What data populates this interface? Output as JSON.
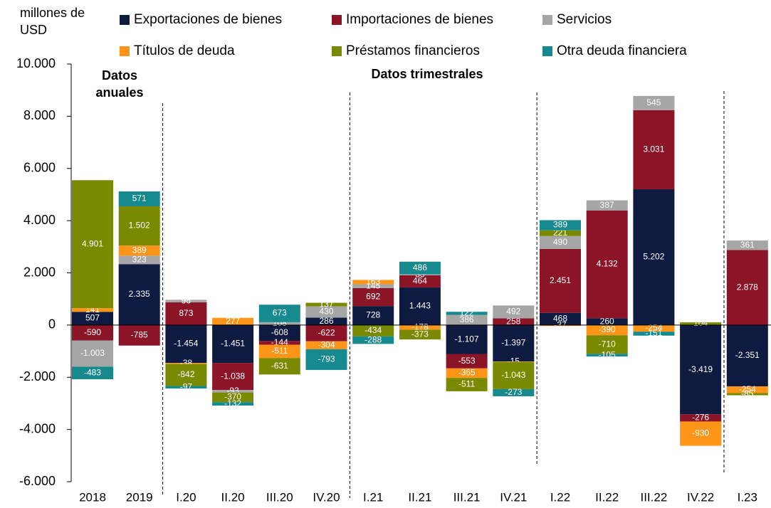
{
  "chart_data": {
    "type": "bar",
    "stacked": true,
    "y_label": "millones de USD",
    "annotations": [
      "Datos anuales",
      "Datos trimestrales"
    ],
    "categories": [
      "2018",
      "2019",
      "I.20",
      "II.20",
      "III.20",
      "IV.20",
      "I.21",
      "II.21",
      "III.21",
      "IV.21",
      "I.22",
      "II.22",
      "III.22",
      "IV.22",
      "I.23"
    ],
    "ylim": [
      -6000,
      10000
    ],
    "yticks": [
      {
        "value": -6000,
        "label": "-6.000"
      },
      {
        "value": -4000,
        "label": "-4.000"
      },
      {
        "value": -2000,
        "label": "-2.000"
      },
      0,
      {
        "value": 2000,
        "label": "2.000"
      },
      {
        "value": 4000,
        "label": "4.000"
      },
      {
        "value": 6000,
        "label": "6.000"
      },
      {
        "value": 8000,
        "label": "8.000"
      },
      {
        "value": 10000,
        "label": "10.000"
      }
    ],
    "series": [
      {
        "name": "Exportaciones de bienes",
        "color": "#0e1a40",
        "values": [
          507,
          2335,
          -1454,
          -1451,
          -608,
          286,
          728,
          1443,
          -1107,
          -1397,
          468,
          260,
          5202,
          -3419,
          -2351
        ],
        "value_labels": [
          "507",
          "2.335",
          "-1.454",
          "-1.451",
          "-608",
          "286",
          "728",
          "1.443",
          "-1.107",
          "-1.397",
          "468",
          "260",
          "5.202",
          "-3.419",
          "-2.351"
        ]
      },
      {
        "name": "Importaciones de bienes",
        "color": "#8b1427",
        "values": [
          -590,
          -785,
          873,
          -1038,
          -144,
          -622,
          692,
          464,
          -553,
          258,
          2451,
          4132,
          3031,
          -276,
          2878
        ],
        "value_labels": [
          "-590",
          "-785",
          "873",
          "-1.038",
          "-144",
          "-622",
          "692",
          "464",
          "-553",
          "258",
          "2.451",
          "4.132",
          "3.031",
          "-276",
          "2.878"
        ]
      },
      {
        "name": "Servicios",
        "color": "#a6a6a6",
        "values": [
          -1003,
          323,
          96,
          -93,
          108,
          430,
          145,
          35,
          386,
          492,
          490,
          387,
          545,
          null,
          361
        ],
        "value_labels": [
          "-1.003",
          "323",
          "96",
          "-93",
          "108",
          "430",
          "145",
          "35",
          "386",
          "492",
          "490",
          "387",
          "545",
          null,
          "361"
        ]
      },
      {
        "name": "Títulos de deuda",
        "color": "#ff9518",
        "values": [
          141,
          389,
          -38,
          277,
          -511,
          -304,
          163,
          -178,
          -365,
          -15,
          -37,
          -390,
          -254,
          -930,
          -254
        ],
        "value_labels": [
          "141",
          "389",
          "-38",
          "277",
          "-511",
          "-304",
          "163",
          "-178",
          "-365",
          "-15",
          "-37",
          "-390",
          "-254",
          "-930",
          "-254"
        ]
      },
      {
        "name": "Préstamos financieros",
        "color": "#7a8a00",
        "values": [
          4901,
          1502,
          -842,
          -370,
          -631,
          137,
          -434,
          -373,
          -511,
          -1043,
          221,
          -710,
          null,
          104,
          -85
        ],
        "value_labels": [
          "4.901",
          "1.502",
          "-842",
          "-370",
          "-631",
          "137",
          "-434",
          "-373",
          "-511",
          "-1.043",
          "221",
          "-710",
          null,
          "104",
          "-85"
        ]
      },
      {
        "name": "Otra deuda financiera",
        "color": "#168a8f",
        "values": [
          -483,
          571,
          -97,
          -132,
          673,
          -793,
          -288,
          486,
          122,
          -273,
          389,
          -105,
          -151,
          null,
          null
        ],
        "value_labels": [
          "-483",
          "571",
          "-97",
          "-132",
          "673",
          "-793",
          "-288",
          "486",
          "122",
          "-273",
          "389",
          "-105",
          "-151",
          null,
          null
        ]
      }
    ]
  }
}
